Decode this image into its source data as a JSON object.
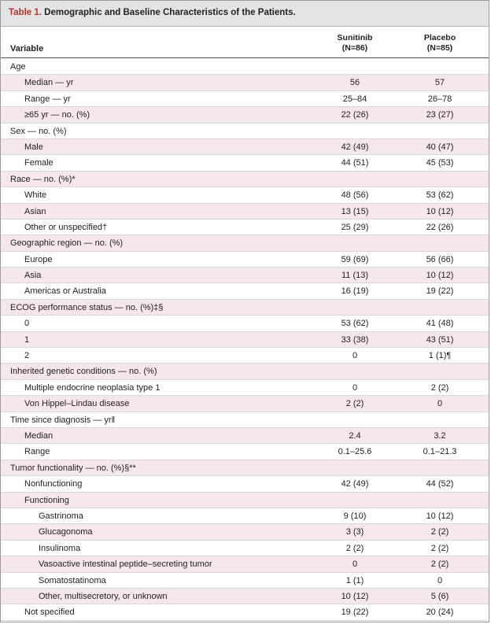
{
  "table": {
    "title_label": "Table 1.",
    "title_text": " Demographic and Baseline Characteristics of the Patients.",
    "variable_header": "Variable",
    "col1_name": "Sunitinib",
    "col1_n": "(N=86)",
    "col2_name": "Placebo",
    "col2_n": "(N=85)",
    "rows": [
      {
        "label": "Age",
        "level": 0,
        "v1": "",
        "v2": ""
      },
      {
        "label": "Median — yr",
        "level": 1,
        "v1": "56",
        "v2": "57"
      },
      {
        "label": "Range — yr",
        "level": 1,
        "v1": "25–84",
        "v2": "26–78"
      },
      {
        "label": "≥65 yr — no. (%)",
        "level": 1,
        "v1": "22 (26)",
        "v2": "23 (27)"
      },
      {
        "label": "Sex — no. (%)",
        "level": 0,
        "v1": "",
        "v2": ""
      },
      {
        "label": "Male",
        "level": 1,
        "v1": "42 (49)",
        "v2": "40 (47)"
      },
      {
        "label": "Female",
        "level": 1,
        "v1": "44 (51)",
        "v2": "45 (53)"
      },
      {
        "label": "Race — no. (%)*",
        "level": 0,
        "v1": "",
        "v2": ""
      },
      {
        "label": "White",
        "level": 1,
        "v1": "48 (56)",
        "v2": "53 (62)"
      },
      {
        "label": "Asian",
        "level": 1,
        "v1": "13 (15)",
        "v2": "10 (12)"
      },
      {
        "label": "Other or unspecified†",
        "level": 1,
        "v1": "25 (29)",
        "v2": "22 (26)"
      },
      {
        "label": "Geographic region — no. (%)",
        "level": 0,
        "v1": "",
        "v2": ""
      },
      {
        "label": "Europe",
        "level": 1,
        "v1": "59 (69)",
        "v2": "56 (66)"
      },
      {
        "label": "Asia",
        "level": 1,
        "v1": "11 (13)",
        "v2": "10 (12)"
      },
      {
        "label": "Americas or Australia",
        "level": 1,
        "v1": "16 (19)",
        "v2": "19 (22)"
      },
      {
        "label": "ECOG performance status — no. (%)‡§",
        "level": 0,
        "v1": "",
        "v2": ""
      },
      {
        "label": "0",
        "level": 1,
        "v1": "53 (62)",
        "v2": "41 (48)"
      },
      {
        "label": "1",
        "level": 1,
        "v1": "33 (38)",
        "v2": "43 (51)"
      },
      {
        "label": "2",
        "level": 1,
        "v1": "0",
        "v2": "1 (1)¶"
      },
      {
        "label": "Inherited genetic conditions — no. (%)",
        "level": 0,
        "v1": "",
        "v2": ""
      },
      {
        "label": "Multiple endocrine neoplasia type 1",
        "level": 1,
        "v1": "0",
        "v2": "2 (2)"
      },
      {
        "label": "Von Hippel–Lindau disease",
        "level": 1,
        "v1": "2 (2)",
        "v2": "0"
      },
      {
        "label": "Time since diagnosis — yr‖",
        "level": 0,
        "v1": "",
        "v2": ""
      },
      {
        "label": "Median",
        "level": 1,
        "v1": "2.4",
        "v2": "3.2"
      },
      {
        "label": "Range",
        "level": 1,
        "v1": "0.1–25.6",
        "v2": "0.1–21.3"
      },
      {
        "label": "Tumor functionality — no. (%)§**",
        "level": 0,
        "v1": "",
        "v2": ""
      },
      {
        "label": "Nonfunctioning",
        "level": 1,
        "v1": "42 (49)",
        "v2": "44 (52)"
      },
      {
        "label": "Functioning",
        "level": 1,
        "v1": "",
        "v2": ""
      },
      {
        "label": "Gastrinoma",
        "level": 2,
        "v1": "9 (10)",
        "v2": "10 (12)"
      },
      {
        "label": "Glucagonoma",
        "level": 2,
        "v1": "3 (3)",
        "v2": "2 (2)"
      },
      {
        "label": "Insulinoma",
        "level": 2,
        "v1": "2 (2)",
        "v2": "2 (2)"
      },
      {
        "label": "Vasoactive intestinal peptide–secreting tumor",
        "level": 2,
        "v1": "0",
        "v2": "2 (2)"
      },
      {
        "label": "Somatostatinoma",
        "level": 2,
        "v1": "1 (1)",
        "v2": "0"
      },
      {
        "label": "Other, multisecretory, or unknown",
        "level": 2,
        "v1": "10 (12)",
        "v2": "5 (6)"
      },
      {
        "label": "Not specified",
        "level": 1,
        "v1": "19 (22)",
        "v2": "20 (24)"
      }
    ]
  }
}
